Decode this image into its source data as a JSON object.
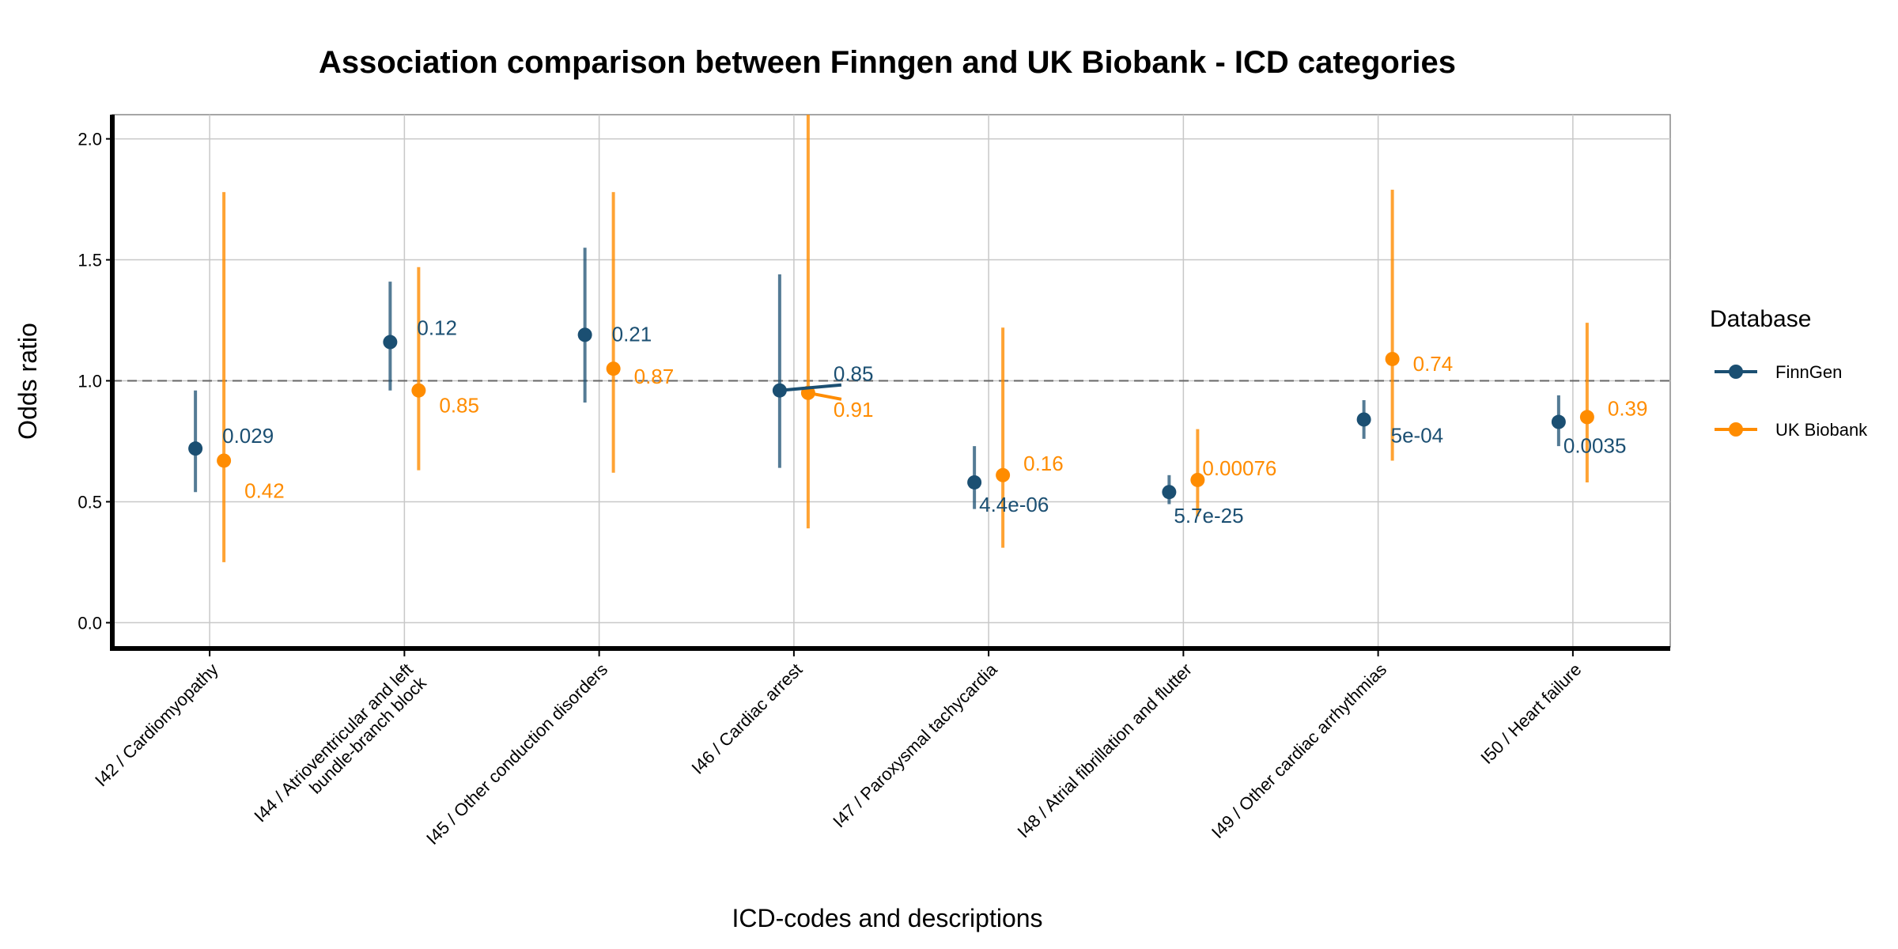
{
  "chart_data": {
    "type": "scatter",
    "title": "Association comparison between Finngen and UK Biobank - ICD categories",
    "xlabel": "ICD-codes and descriptions",
    "ylabel": "Odds ratio",
    "ylim": [
      -0.1,
      2.1
    ],
    "yticks": [
      "0.0",
      "0.5",
      "1.0",
      "1.5",
      "2.0"
    ],
    "reference_line": 1.0,
    "grid": true,
    "legend": {
      "title": "Database",
      "position": "right"
    },
    "categories": [
      [
        "I42 / Cardiomyopathy"
      ],
      [
        "I44 / Atrioventricular and left",
        "bundle-branch block"
      ],
      [
        "I45 / Other conduction disorders"
      ],
      [
        "I46 / Cardiac arrest"
      ],
      [
        "I47 / Paroxysmal tachycardia"
      ],
      [
        "I48 / Atrial fibrillation and flutter"
      ],
      [
        "I49 / Other cardiac arrhythmias"
      ],
      [
        "I50 / Heart failure"
      ]
    ],
    "series": [
      {
        "name": "FinnGen",
        "color": "#1b4f72",
        "or": [
          0.72,
          1.16,
          1.19,
          0.96,
          0.58,
          0.54,
          0.84,
          0.83
        ],
        "lower": [
          0.54,
          0.96,
          0.91,
          0.64,
          0.47,
          0.49,
          0.76,
          0.73
        ],
        "upper": [
          0.96,
          1.41,
          1.55,
          1.44,
          0.73,
          0.61,
          0.92,
          0.94
        ],
        "pvalues": [
          "0.029",
          "0.12",
          "0.21",
          "0.85",
          "4.4e-06",
          "5.7e-25",
          "5e-04",
          "0.0035"
        ]
      },
      {
        "name": "UK Biobank",
        "color": "#ff8c00",
        "or": [
          0.67,
          0.96,
          1.05,
          0.95,
          0.61,
          0.59,
          1.09,
          0.85
        ],
        "lower": [
          0.25,
          0.63,
          0.62,
          0.39,
          0.31,
          0.44,
          0.67,
          0.58
        ],
        "upper": [
          1.78,
          1.47,
          1.78,
          2.1,
          1.22,
          0.8,
          1.79,
          1.24
        ],
        "pvalues": [
          "0.42",
          "0.85",
          "0.87",
          "0.91",
          "0.16",
          "0.00076",
          "0.74",
          "0.39"
        ]
      }
    ]
  }
}
